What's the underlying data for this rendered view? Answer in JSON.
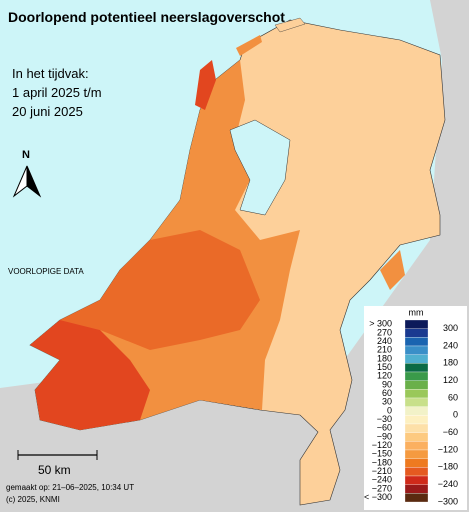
{
  "title": "Doorlopend potentieel neerslagoverschot",
  "period": [
    "In het tijdvak:",
    "1 april 2025 t/m",
    "20 juni 2025"
  ],
  "north": "N",
  "note": "VOORLOPIGE DATA",
  "scale_label": "50 km",
  "made": "gemaakt op: 21–06–2025, 10:34 UT",
  "copyright": "(c) 2025, KNMI",
  "legend": {
    "unit": "mm",
    "left_labels": [
      "> 300",
      "270",
      "240",
      "210",
      "180",
      "150",
      "120",
      "90",
      "60",
      "30",
      "0",
      "−30",
      "−60",
      "−90",
      "−120",
      "−150",
      "−180",
      "−210",
      "−240",
      "−270",
      "< −300"
    ],
    "right_labels": [
      "300",
      "240",
      "180",
      "120",
      "60",
      "0",
      "−60",
      "−120",
      "−180",
      "−240",
      "−300"
    ],
    "colors": [
      "#0c1a5a",
      "#1a3a90",
      "#1a64b0",
      "#3a8fc8",
      "#50b0d0",
      "#0a6b45",
      "#3a9a4a",
      "#6ab04a",
      "#9ac85a",
      "#c8e08a",
      "#f2f2c8",
      "#fdf0c0",
      "#fde0a8",
      "#fdca80",
      "#fbb060",
      "#f59a40",
      "#ee7a20",
      "#e55a20",
      "#d02a1a",
      "#9a1a1a",
      "#5a2a10"
    ]
  }
}
